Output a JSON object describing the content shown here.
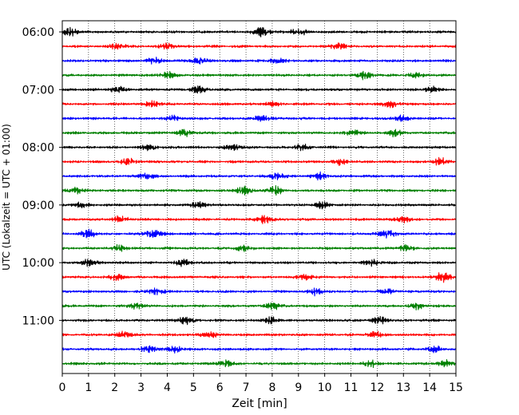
{
  "chart_data": {
    "type": "line",
    "title": "",
    "xlabel": "Zeit  [min]",
    "ylabel": "UTC (Lokalzeit = UTC + 01:00)",
    "xlim": [
      0,
      15
    ],
    "x_ticks": [
      "0",
      "1",
      "2",
      "3",
      "4",
      "5",
      "6",
      "7",
      "8",
      "9",
      "10",
      "11",
      "12",
      "13",
      "14",
      "15"
    ],
    "y_tick_labels": [
      "06:00",
      "07:00",
      "08:00",
      "09:00",
      "10:00",
      "11:00"
    ],
    "start_time": "06:00",
    "trace_interval_minutes": 15,
    "trace_count": 24,
    "trace_colors": [
      "#000000",
      "#ff0000",
      "#0000ff",
      "#008000"
    ],
    "vertical_grid": "dotted, at every minute",
    "bursts": [
      [
        [
          0.3,
          1.0
        ],
        [
          7.6,
          1.3
        ],
        [
          9.0,
          1.1
        ]
      ],
      [
        [
          2.1,
          0.8
        ],
        [
          4.0,
          0.7
        ],
        [
          10.5,
          0.9
        ]
      ],
      [
        [
          3.5,
          0.8
        ],
        [
          5.2,
          0.8
        ],
        [
          8.2,
          0.7
        ]
      ],
      [
        [
          4.0,
          0.8
        ],
        [
          11.5,
          1.0
        ],
        [
          13.5,
          0.7
        ]
      ],
      [
        [
          2.1,
          0.9
        ],
        [
          5.2,
          0.8
        ],
        [
          14.1,
          0.8
        ]
      ],
      [
        [
          3.4,
          0.8
        ],
        [
          8.0,
          0.8
        ],
        [
          12.5,
          0.9
        ]
      ],
      [
        [
          4.2,
          0.7
        ],
        [
          7.6,
          0.8
        ],
        [
          12.9,
          0.8
        ]
      ],
      [
        [
          4.7,
          1.0
        ],
        [
          11.1,
          0.8
        ],
        [
          12.7,
          0.9
        ]
      ],
      [
        [
          3.3,
          0.8
        ],
        [
          6.5,
          0.8
        ],
        [
          9.1,
          0.8
        ]
      ],
      [
        [
          2.5,
          0.8
        ],
        [
          10.6,
          0.8
        ],
        [
          14.4,
          1.0
        ]
      ],
      [
        [
          3.2,
          0.8
        ],
        [
          8.2,
          1.0
        ],
        [
          9.8,
          0.9
        ]
      ],
      [
        [
          0.5,
          0.8
        ],
        [
          6.9,
          1.0
        ],
        [
          8.1,
          1.3
        ]
      ],
      [
        [
          0.7,
          0.8
        ],
        [
          5.2,
          0.8
        ],
        [
          9.9,
          0.9
        ]
      ],
      [
        [
          2.2,
          0.9
        ],
        [
          7.7,
          1.0
        ],
        [
          13.0,
          0.7
        ]
      ],
      [
        [
          1.0,
          1.0
        ],
        [
          3.5,
          1.2
        ],
        [
          12.4,
          1.2
        ]
      ],
      [
        [
          2.2,
          0.8
        ],
        [
          6.9,
          0.8
        ],
        [
          13.1,
          0.8
        ]
      ],
      [
        [
          1.0,
          1.0
        ],
        [
          4.6,
          0.9
        ],
        [
          11.8,
          0.8
        ]
      ],
      [
        [
          2.1,
          0.8
        ],
        [
          9.3,
          0.7
        ],
        [
          14.5,
          1.5
        ]
      ],
      [
        [
          3.6,
          0.8
        ],
        [
          9.6,
          1.0
        ],
        [
          12.4,
          0.8
        ]
      ],
      [
        [
          2.8,
          0.8
        ],
        [
          8.0,
          1.0
        ],
        [
          13.6,
          0.9
        ]
      ],
      [
        [
          4.7,
          1.0
        ],
        [
          7.9,
          0.9
        ],
        [
          12.1,
          0.9
        ]
      ],
      [
        [
          2.4,
          0.9
        ],
        [
          5.6,
          0.8
        ],
        [
          11.9,
          0.8
        ]
      ],
      [
        [
          3.3,
          1.0
        ],
        [
          4.3,
          0.9
        ],
        [
          14.2,
          0.7
        ]
      ],
      [
        [
          6.2,
          0.8
        ],
        [
          11.8,
          0.8
        ],
        [
          14.6,
          0.8
        ]
      ]
    ]
  }
}
